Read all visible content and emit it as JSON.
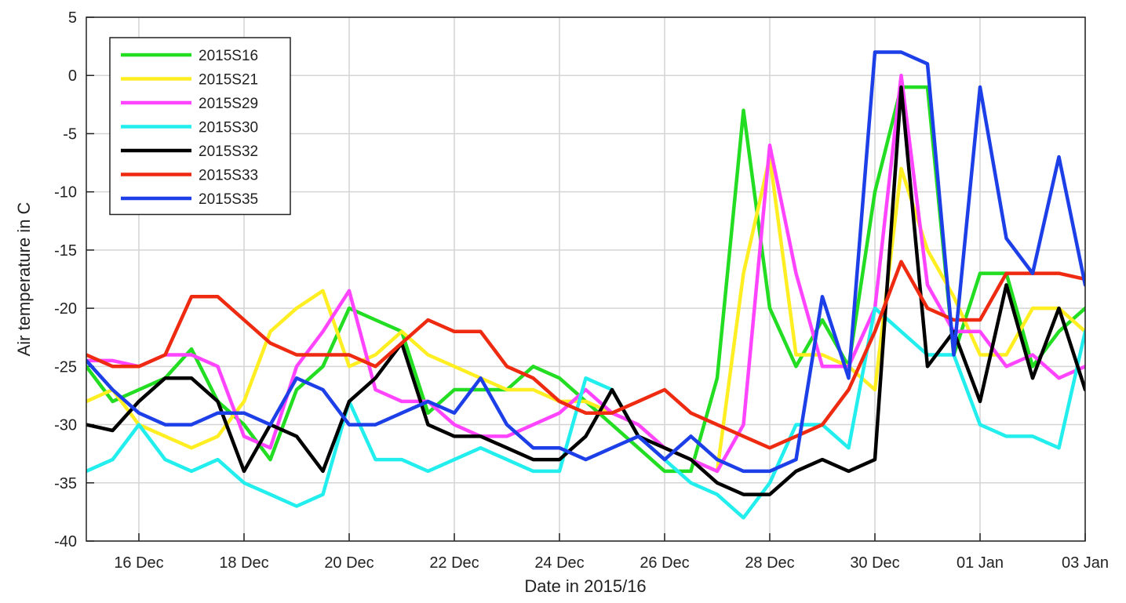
{
  "chart_data": {
    "type": "line",
    "x_label": "Date in 2015/16",
    "y_label": "Air temperature in C",
    "xlim": [
      15,
      34
    ],
    "ylim": [
      -40,
      5
    ],
    "xticks": [
      {
        "value": 16,
        "label": "16 Dec"
      },
      {
        "value": 18,
        "label": "18 Dec"
      },
      {
        "value": 20,
        "label": "20 Dec"
      },
      {
        "value": 22,
        "label": "22 Dec"
      },
      {
        "value": 24,
        "label": "24 Dec"
      },
      {
        "value": 26,
        "label": "26 Dec"
      },
      {
        "value": 28,
        "label": "28 Dec"
      },
      {
        "value": 30,
        "label": "30 Dec"
      },
      {
        "value": 32,
        "label": "01 Jan"
      },
      {
        "value": 34,
        "label": "03 Jan"
      }
    ],
    "yticks": [
      -40,
      -35,
      -30,
      -25,
      -20,
      -15,
      -10,
      -5,
      0,
      5
    ],
    "grid": true,
    "legend": "upper-left",
    "x": [
      15,
      15.5,
      16,
      16.5,
      17,
      17.5,
      18,
      18.5,
      19,
      19.5,
      20,
      20.5,
      21,
      21.5,
      22,
      22.5,
      23,
      23.5,
      24,
      24.5,
      25,
      25.5,
      26,
      26.5,
      27,
      27.5,
      28,
      28.5,
      29,
      29.5,
      30,
      30.5,
      31,
      31.5,
      32,
      32.5,
      33,
      33.5,
      34
    ],
    "series": [
      {
        "name": "2015S16",
        "color": "#22dd22",
        "values": [
          -25,
          -28,
          -27,
          -26,
          -23.5,
          -28,
          -30,
          -33,
          -27,
          -25,
          -20,
          -21,
          -22,
          -29,
          -27,
          -27,
          -27,
          -25,
          -26,
          -28,
          -30,
          -32,
          -34,
          -34,
          -26,
          -3,
          -20,
          -25,
          -21,
          -25,
          -10,
          -1,
          -1,
          -24,
          -17,
          -17,
          -25,
          -22,
          -20
        ]
      },
      {
        "name": "2015S21",
        "color": "#ffee22",
        "values": [
          -28,
          -27,
          -30,
          -31,
          -32,
          -31,
          -28,
          -22,
          -20,
          -18.5,
          -25,
          -24,
          -22,
          -24,
          -25,
          -26,
          -27,
          -27,
          -28,
          -28,
          -29,
          -30,
          -32,
          -33,
          -34,
          -17,
          -7,
          -24,
          -24,
          -25,
          -27,
          -8,
          -15,
          -19,
          -24,
          -24,
          -20,
          -20,
          -22
        ]
      },
      {
        "name": "2015S29",
        "color": "#ff44ff",
        "values": [
          -24.5,
          -24.5,
          -25,
          -24,
          -24,
          -25,
          -31,
          -32,
          -25,
          -22,
          -18.5,
          -27,
          -28,
          -28,
          -30,
          -31,
          -31,
          -30,
          -29,
          -27,
          -29,
          -30,
          -32,
          -33,
          -34,
          -30,
          -6,
          -17,
          -25,
          -25,
          -20,
          0,
          -18,
          -22,
          -22,
          -25,
          -24,
          -26,
          -25
        ]
      },
      {
        "name": "2015S30",
        "color": "#22eeee",
        "values": [
          -34,
          -33,
          -30,
          -33,
          -34,
          -33,
          -35,
          -36,
          -37,
          -36,
          -28,
          -33,
          -33,
          -34,
          -33,
          -32,
          -33,
          -34,
          -34,
          -26,
          -27,
          -31,
          -33,
          -35,
          -36,
          -38,
          -35,
          -30,
          -30,
          -32,
          -20,
          -22,
          -24,
          -24,
          -30,
          -31,
          -31,
          -32,
          -22
        ]
      },
      {
        "name": "2015S32",
        "color": "#000000",
        "values": [
          -30,
          -30.5,
          -28,
          -26,
          -26,
          -28,
          -34,
          -30,
          -31,
          -34,
          -28,
          -26,
          -23,
          -30,
          -31,
          -31,
          -32,
          -33,
          -33,
          -31,
          -27,
          -31,
          -32,
          -33,
          -35,
          -36,
          -36,
          -34,
          -33,
          -34,
          -33,
          -1,
          -25,
          -22,
          -28,
          -18,
          -26,
          -20,
          -27
        ]
      },
      {
        "name": "2015S33",
        "color": "#ee2a10",
        "values": [
          -24,
          -25,
          -25,
          -24,
          -19,
          -19,
          -21,
          -23,
          -24,
          -24,
          -24,
          -25,
          -23,
          -21,
          -22,
          -22,
          -25,
          -26,
          -28,
          -29,
          -29,
          -28,
          -27,
          -29,
          -30,
          -31,
          -32,
          -31,
          -30,
          -27,
          -22,
          -16,
          -20,
          -21,
          -21,
          -17,
          -17,
          -17,
          -17.5
        ]
      },
      {
        "name": "2015S35",
        "color": "#1c3fe8",
        "values": [
          -24.5,
          -27,
          -29,
          -30,
          -30,
          -29,
          -29,
          -30,
          -26,
          -27,
          -30,
          -30,
          -29,
          -28,
          -29,
          -26,
          -30,
          -32,
          -32,
          -33,
          -32,
          -31,
          -33,
          -31,
          -33,
          -34,
          -34,
          -33,
          -19,
          -26,
          2,
          2,
          1,
          -24,
          -1,
          -14,
          -17,
          -7,
          -18
        ]
      }
    ]
  }
}
